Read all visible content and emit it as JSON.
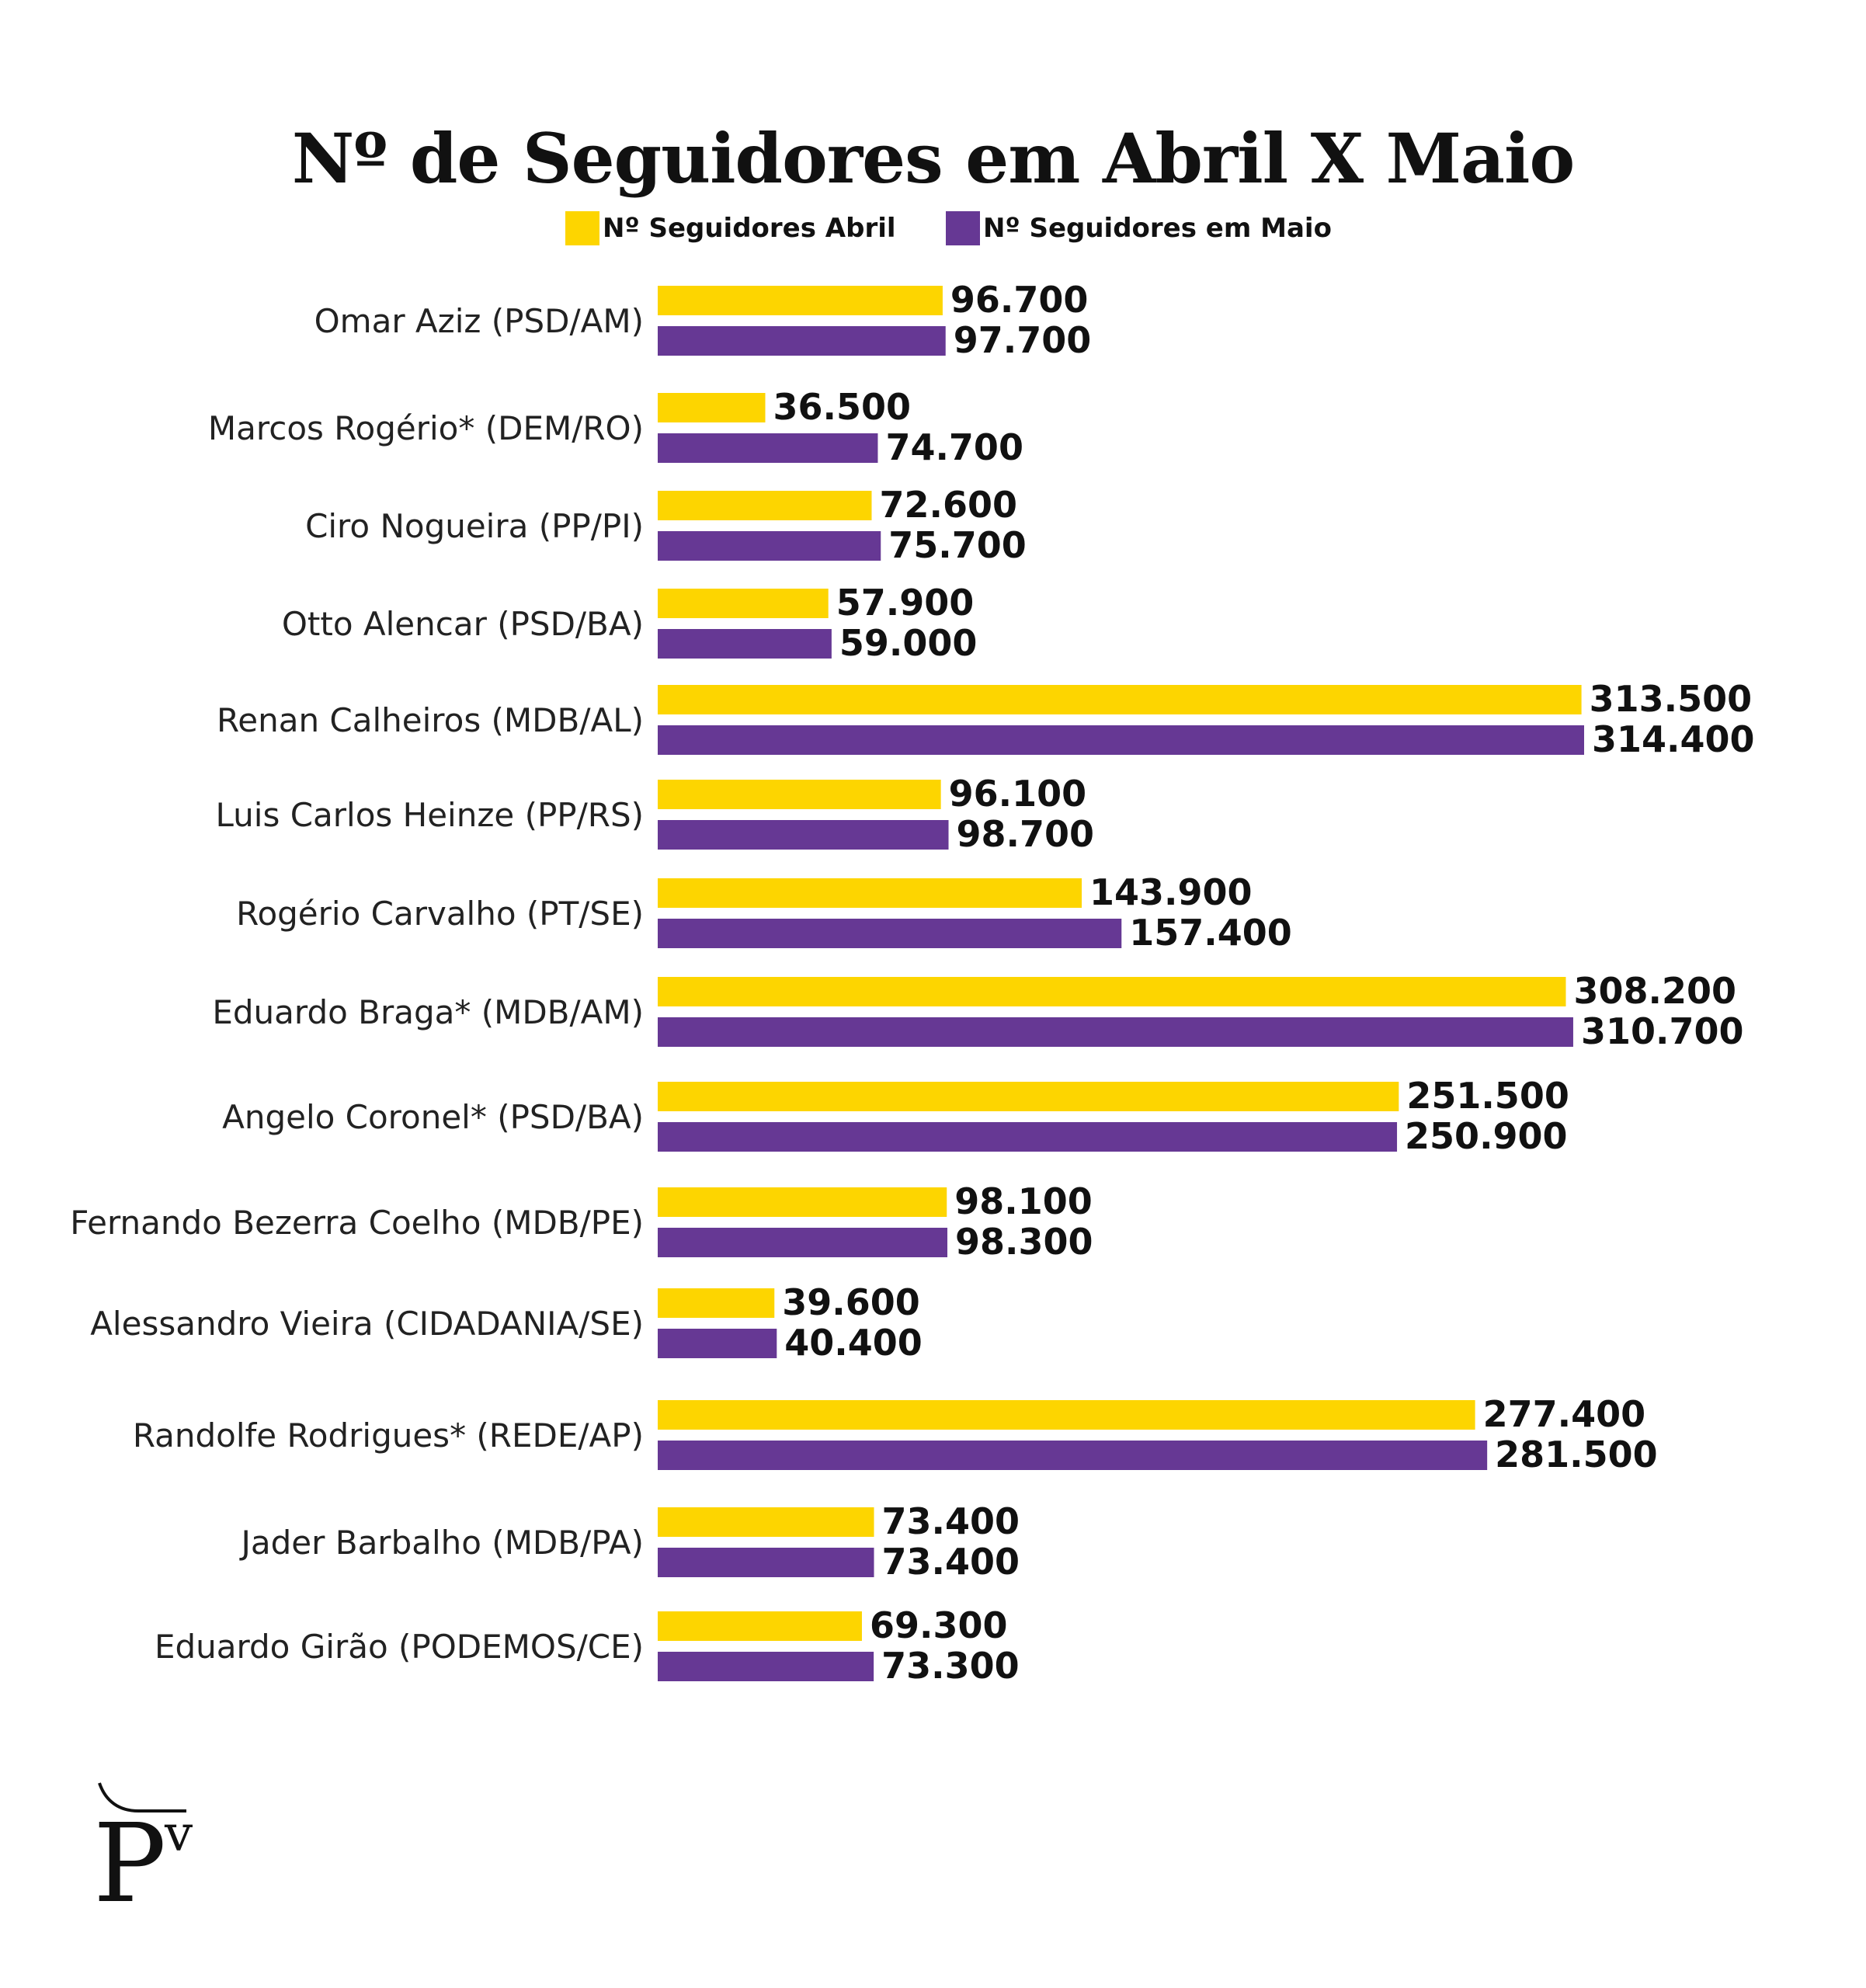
{
  "chart_data": {
    "type": "bar",
    "orientation": "horizontal",
    "title": "Nº de Seguidores em Abril X Maio",
    "categories": [
      "Omar Aziz (PSD/AM)",
      "Marcos Rogério* (DEM/RO)",
      "Ciro Nogueira (PP/PI)",
      "Otto Alencar (PSD/BA)",
      "Renan Calheiros (MDB/AL)",
      "Luis Carlos Heinze (PP/RS)",
      "Rogério Carvalho (PT/SE)",
      "Eduardo Braga* (MDB/AM)",
      "Angelo Coronel* (PSD/BA)",
      "Fernando Bezerra Coelho (MDB/PE)",
      "Alessandro Vieira (CIDADANIA/SE)",
      "Randolfe Rodrigues* (REDE/AP)",
      "Jader Barbalho (MDB/PA)",
      "Eduardo Girão (PODEMOS/CE)"
    ],
    "series": [
      {
        "name": "Nº Seguidores Abril",
        "color": "#FDD500",
        "values": [
          96700,
          36500,
          72600,
          57900,
          313500,
          96100,
          143900,
          308200,
          251500,
          98100,
          39600,
          277400,
          73400,
          69300
        ],
        "labels": [
          "96.700",
          "36.500",
          "72.600",
          "57.900",
          "313.500",
          "96.100",
          "143.900",
          "308.200",
          "251.500",
          "98.100",
          "39.600",
          "277.400",
          "73.400",
          "69.300"
        ]
      },
      {
        "name": "Nº Seguidores em Maio",
        "color": "#663894",
        "values": [
          97700,
          74700,
          75700,
          59000,
          314400,
          98700,
          157400,
          310700,
          250900,
          98300,
          40400,
          281500,
          73400,
          73300
        ],
        "labels": [
          "97.700",
          "74.700",
          "75.700",
          "59.000",
          "314.400",
          "98.700",
          "157.400",
          "310.700",
          "250.900",
          "98.300",
          "40.400",
          "281.500",
          "73.400",
          "73.300"
        ]
      }
    ],
    "xlim": [
      0,
      314400
    ],
    "legend_position": "top-center",
    "grid": false
  },
  "logo": {
    "text": "PV"
  }
}
